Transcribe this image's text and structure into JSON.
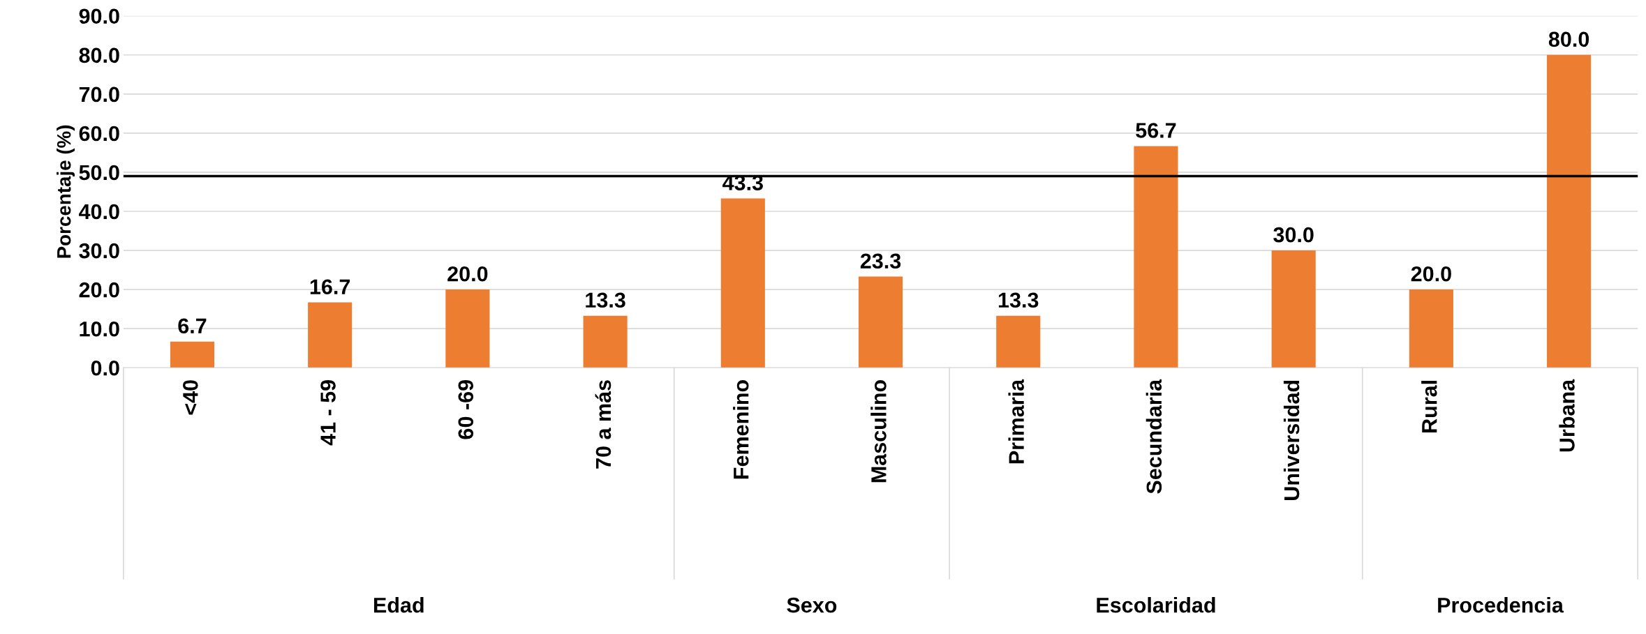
{
  "chart_data": {
    "type": "bar",
    "ylabel": "Porcentaje (%)",
    "categories": [
      "<40",
      "41 - 59",
      "60 -69",
      "70 a más",
      "Femenino",
      "Masculino",
      "Primaria",
      "Secundaria",
      "Universidad",
      "Rural",
      "Urbana"
    ],
    "values": [
      6.7,
      16.7,
      20.0,
      13.3,
      43.3,
      23.3,
      13.3,
      56.7,
      30.0,
      20.0,
      80.0
    ],
    "value_labels": [
      "6.7",
      "16.7",
      "20.0",
      "13.3",
      "43.3",
      "23.3",
      "13.3",
      "56.7",
      "30.0",
      "20.0",
      "80.0"
    ],
    "color": "#ed7d31",
    "ylim": [
      0,
      90
    ],
    "yticks": [
      {
        "value": 0,
        "label": "0.0"
      },
      {
        "value": 10,
        "label": "10.0"
      },
      {
        "value": 20,
        "label": "20.0"
      },
      {
        "value": 30,
        "label": "30.0"
      },
      {
        "value": 40,
        "label": "40.0"
      },
      {
        "value": 50,
        "label": "50.0"
      },
      {
        "value": 60,
        "label": "60.0"
      },
      {
        "value": 70,
        "label": "70.0"
      },
      {
        "value": 80,
        "label": "80.0"
      },
      {
        "value": 90,
        "label": "90.0"
      }
    ],
    "grid": "y",
    "ref_lines": [
      {
        "axis": "y",
        "value": 49,
        "color": "#000000"
      }
    ],
    "annotations": [
      "Edad",
      "Sexo",
      "Escolaridad",
      "Procedencia"
    ]
  }
}
